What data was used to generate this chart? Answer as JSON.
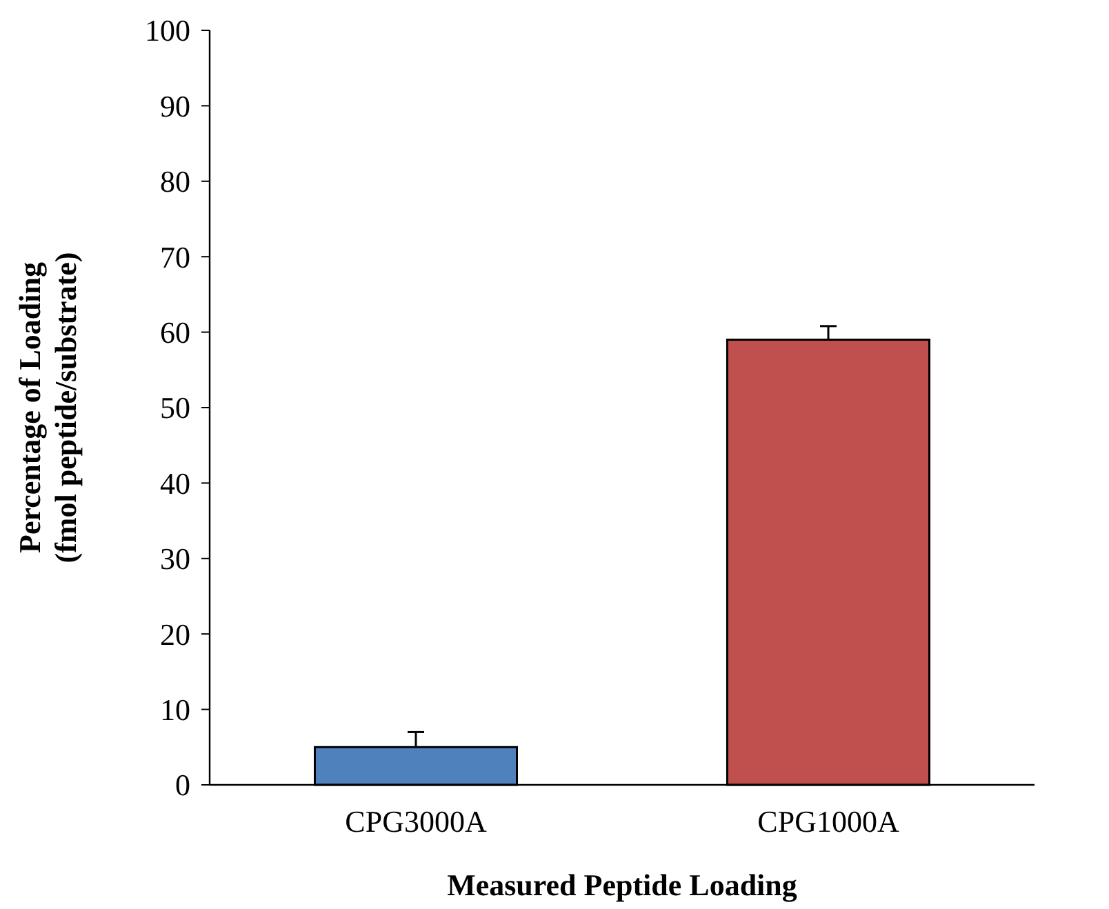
{
  "chart_data": {
    "type": "bar",
    "xlabel": "Measured Peptide Loading",
    "ylabel": "Percentage of Loading\n(fmol peptide/substrate)",
    "categories": [
      "CPG3000A",
      "CPG1000A"
    ],
    "values": [
      5,
      59
    ],
    "colors": [
      "#4f81bd",
      "#c0504d"
    ],
    "errors": [
      [
        5,
        7
      ],
      [
        59,
        60.8
      ]
    ],
    "ylim": [
      0,
      100
    ],
    "yticks": [
      0,
      10,
      20,
      30,
      40,
      50,
      60,
      70,
      80,
      90,
      100
    ],
    "grid": false
  }
}
